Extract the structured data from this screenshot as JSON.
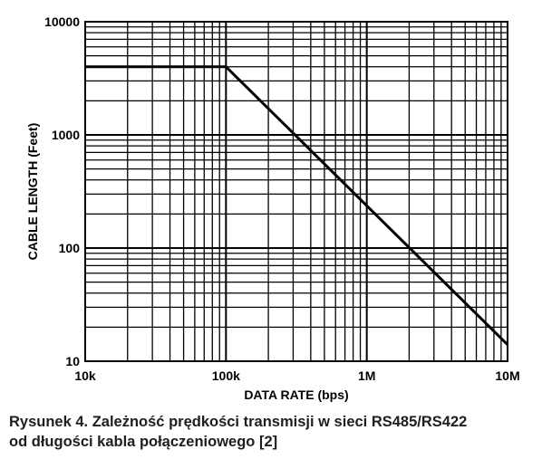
{
  "chart_data": {
    "type": "line",
    "xlabel": "DATA RATE (bps)",
    "ylabel": "CABLE LENGTH (Feet)",
    "x_scale": "log",
    "y_scale": "log",
    "xlim": [
      10000,
      10000000
    ],
    "ylim": [
      10,
      10000
    ],
    "x_ticks": [
      10000,
      100000,
      1000000,
      10000000
    ],
    "x_tick_labels": [
      "10k",
      "100k",
      "1M",
      "10M"
    ],
    "y_ticks": [
      10,
      100,
      1000,
      10000
    ],
    "y_tick_labels": [
      "10",
      "100",
      "1000",
      "10000"
    ],
    "grid": true,
    "series": [
      {
        "x": [
          10000,
          100000,
          10000000
        ],
        "y": [
          4000,
          4000,
          14
        ]
      }
    ]
  },
  "caption": {
    "line1": "Rysunek 4. Zależność prędkości transmisji w sieci RS485/RS422",
    "line2": "od długości kabla połączeniowego [2]"
  }
}
